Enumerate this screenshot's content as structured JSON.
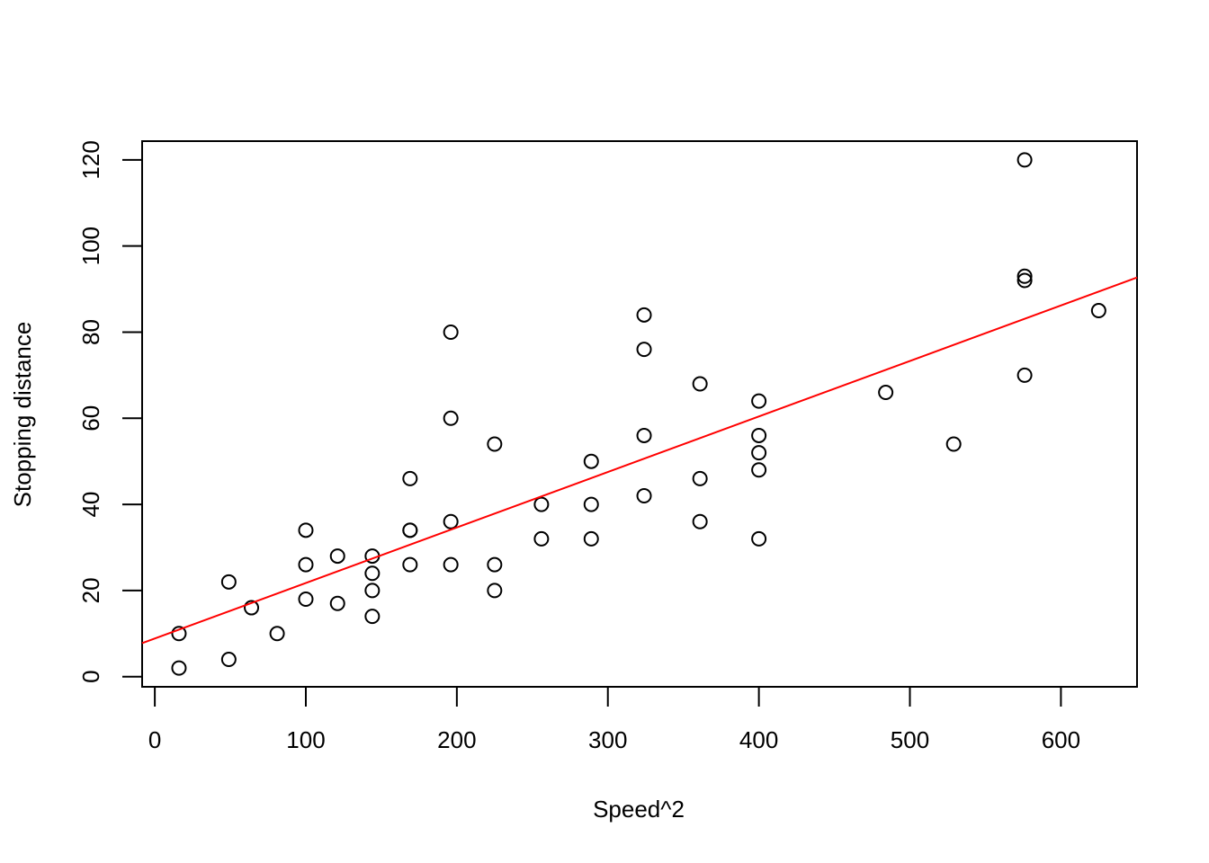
{
  "chart_data": {
    "type": "scatter",
    "title": "",
    "xlabel": "Speed^2",
    "ylabel": "Stopping distance",
    "xlim": [
      -8.4,
      650.4
    ],
    "ylim": [
      -2.36,
      124.36
    ],
    "xticks": [
      0,
      100,
      200,
      300,
      400,
      500,
      600
    ],
    "yticks": [
      0,
      20,
      40,
      60,
      80,
      100,
      120
    ],
    "point_color": "#000000",
    "line_color": "#ff0000",
    "points": [
      {
        "x": 16,
        "y": 2
      },
      {
        "x": 16,
        "y": 10
      },
      {
        "x": 49,
        "y": 4
      },
      {
        "x": 49,
        "y": 22
      },
      {
        "x": 64,
        "y": 16
      },
      {
        "x": 81,
        "y": 10
      },
      {
        "x": 100,
        "y": 18
      },
      {
        "x": 100,
        "y": 26
      },
      {
        "x": 100,
        "y": 34
      },
      {
        "x": 121,
        "y": 17
      },
      {
        "x": 121,
        "y": 28
      },
      {
        "x": 144,
        "y": 14
      },
      {
        "x": 144,
        "y": 20
      },
      {
        "x": 144,
        "y": 24
      },
      {
        "x": 144,
        "y": 28
      },
      {
        "x": 169,
        "y": 26
      },
      {
        "x": 169,
        "y": 34
      },
      {
        "x": 169,
        "y": 34
      },
      {
        "x": 169,
        "y": 46
      },
      {
        "x": 196,
        "y": 26
      },
      {
        "x": 196,
        "y": 36
      },
      {
        "x": 196,
        "y": 60
      },
      {
        "x": 196,
        "y": 80
      },
      {
        "x": 225,
        "y": 20
      },
      {
        "x": 225,
        "y": 26
      },
      {
        "x": 225,
        "y": 54
      },
      {
        "x": 256,
        "y": 32
      },
      {
        "x": 256,
        "y": 40
      },
      {
        "x": 289,
        "y": 32
      },
      {
        "x": 289,
        "y": 40
      },
      {
        "x": 289,
        "y": 50
      },
      {
        "x": 324,
        "y": 42
      },
      {
        "x": 324,
        "y": 56
      },
      {
        "x": 324,
        "y": 76
      },
      {
        "x": 324,
        "y": 84
      },
      {
        "x": 361,
        "y": 36
      },
      {
        "x": 361,
        "y": 46
      },
      {
        "x": 361,
        "y": 68
      },
      {
        "x": 400,
        "y": 32
      },
      {
        "x": 400,
        "y": 48
      },
      {
        "x": 400,
        "y": 52
      },
      {
        "x": 400,
        "y": 56
      },
      {
        "x": 400,
        "y": 64
      },
      {
        "x": 484,
        "y": 66
      },
      {
        "x": 529,
        "y": 54
      },
      {
        "x": 576,
        "y": 70
      },
      {
        "x": 576,
        "y": 92
      },
      {
        "x": 576,
        "y": 93
      },
      {
        "x": 576,
        "y": 120
      },
      {
        "x": 625,
        "y": 85
      }
    ],
    "fit_line": {
      "intercept": 8.86,
      "slope": 0.1289
    }
  }
}
